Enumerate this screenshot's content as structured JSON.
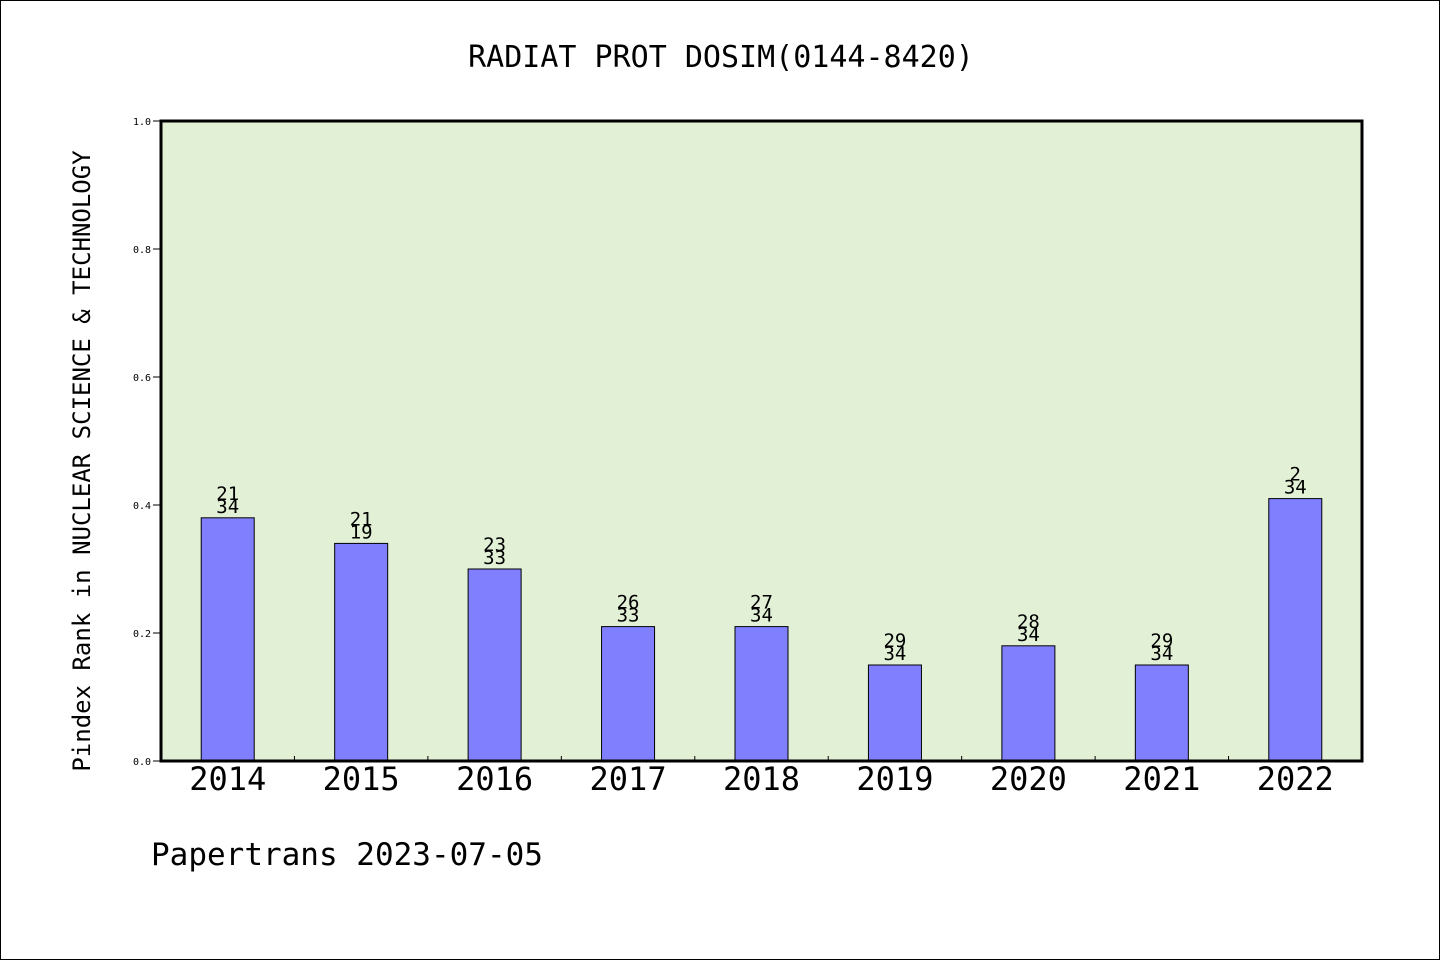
{
  "chart_data": {
    "type": "bar",
    "title": "RADIAT PROT DOSIM(0144-8420)",
    "ylabel": "Pindex Rank in NUCLEAR SCIENCE & TECHNOLOGY",
    "xlabel": "",
    "ylim": [
      0,
      1.0
    ],
    "yticks": [
      "0.0",
      "0.2",
      "0.4",
      "0.6",
      "0.8",
      "1.0"
    ],
    "categories": [
      "2014",
      "2015",
      "2016",
      "2017",
      "2018",
      "2019",
      "2020",
      "2021",
      "2022"
    ],
    "values": [
      0.38,
      0.34,
      0.3,
      0.21,
      0.21,
      0.15,
      0.18,
      0.15,
      0.41
    ],
    "labels_top": [
      "21",
      "21",
      "23",
      "26",
      "27",
      "29",
      "28",
      "29",
      "2"
    ],
    "labels_bottom": [
      "34",
      "19",
      "33",
      "33",
      "34",
      "34",
      "34",
      "34",
      "34"
    ],
    "grid": false,
    "colors": {
      "bar": "#8080ff",
      "plot_bg": "#e2f0d6"
    }
  },
  "footer": "Papertrans 2023-07-05"
}
